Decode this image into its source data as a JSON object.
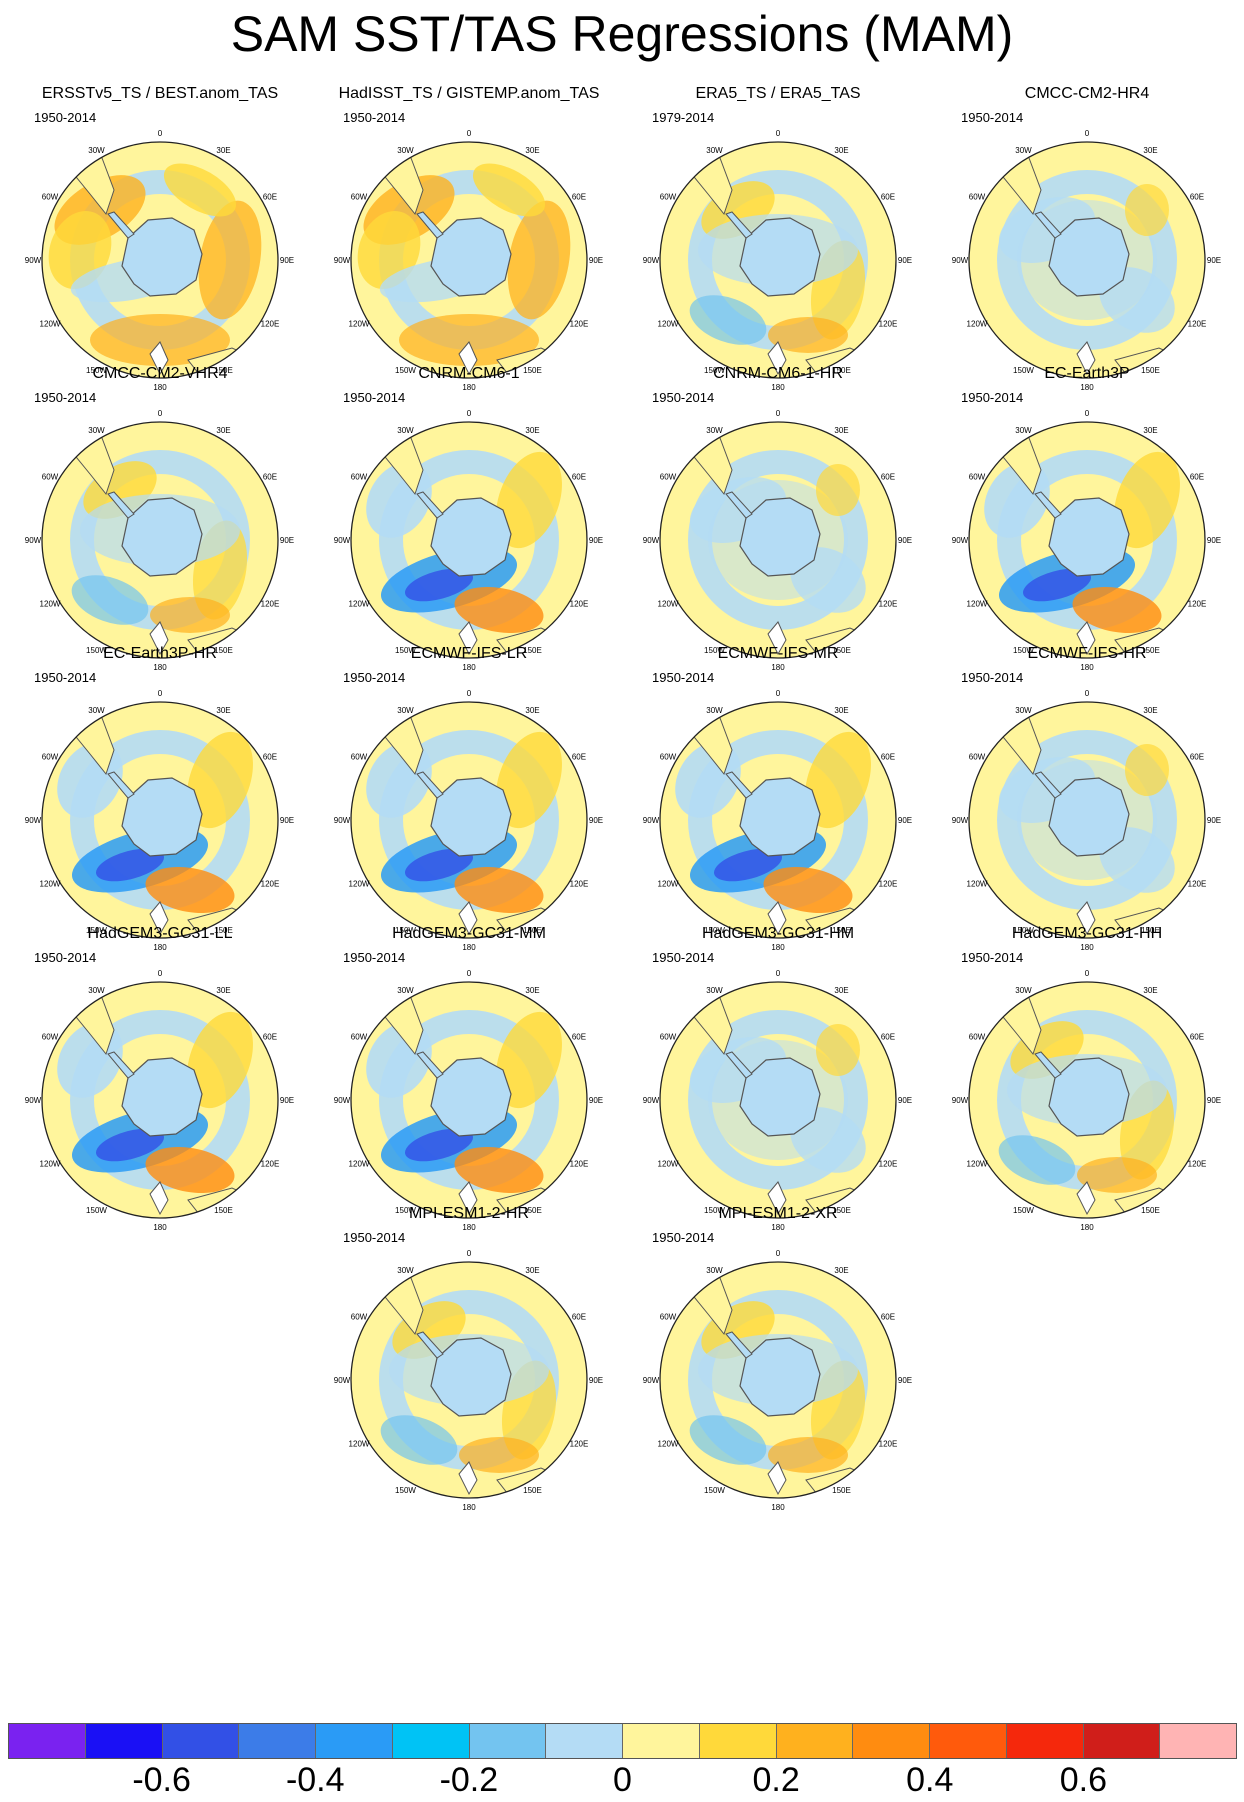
{
  "title": "SAM SST/TAS Regressions (MAM)",
  "lon_labels": [
    "0",
    "30E",
    "60E",
    "90E",
    "120E",
    "150E",
    "180",
    "150W",
    "120W",
    "90W",
    "60W",
    "30W"
  ],
  "panels": [
    {
      "title": "ERSSTv5_TS / BEST.anom_TAS",
      "years": "1950-2014"
    },
    {
      "title": "HadISST_TS / GISTEMP.anom_TAS",
      "years": "1950-2014"
    },
    {
      "title": "ERA5_TS / ERA5_TAS",
      "years": "1979-2014"
    },
    {
      "title": "CMCC-CM2-HR4",
      "years": "1950-2014"
    },
    {
      "title": "CMCC-CM2-VHR4",
      "years": "1950-2014"
    },
    {
      "title": "CNRM-CM6-1",
      "years": "1950-2014"
    },
    {
      "title": "CNRM-CM6-1-HR",
      "years": "1950-2014"
    },
    {
      "title": "EC-Earth3P",
      "years": "1950-2014"
    },
    {
      "title": "EC-Earth3P-HR",
      "years": "1950-2014"
    },
    {
      "title": "ECMWF-IFS-LR",
      "years": "1950-2014"
    },
    {
      "title": "ECMWF-IFS-MR",
      "years": "1950-2014"
    },
    {
      "title": "ECMWF-IFS-HR",
      "years": "1950-2014"
    },
    {
      "title": "HadGEM3-GC31-LL",
      "years": "1950-2014"
    },
    {
      "title": "HadGEM3-GC31-MM",
      "years": "1950-2014"
    },
    {
      "title": "HadGEM3-GC31-HM",
      "years": "1950-2014"
    },
    {
      "title": "HadGEM3-GC31-HH",
      "years": "1950-2014"
    },
    {
      "title": "MPI-ESM1-2-HR",
      "years": "1950-2014"
    },
    {
      "title": "MPI-ESM1-2-XR",
      "years": "1950-2014"
    }
  ],
  "colorbar": {
    "colors": [
      "#7a22f0",
      "#1a10f5",
      "#3250e6",
      "#3c7ce8",
      "#2a9bf6",
      "#00c3f5",
      "#73c4f0",
      "#b4dcf5",
      "#fff59c",
      "#ffd93a",
      "#ffb11e",
      "#ff8c10",
      "#ff5a0c",
      "#f5280c",
      "#d01e1a",
      "#ffb4b4"
    ],
    "tick_labels": [
      "-0.6",
      "-0.4",
      "-0.2",
      "0",
      "0.2",
      "0.4",
      "0.6"
    ],
    "tick_values": [
      -0.6,
      -0.4,
      -0.2,
      0,
      0.2,
      0.4,
      0.6
    ]
  }
}
